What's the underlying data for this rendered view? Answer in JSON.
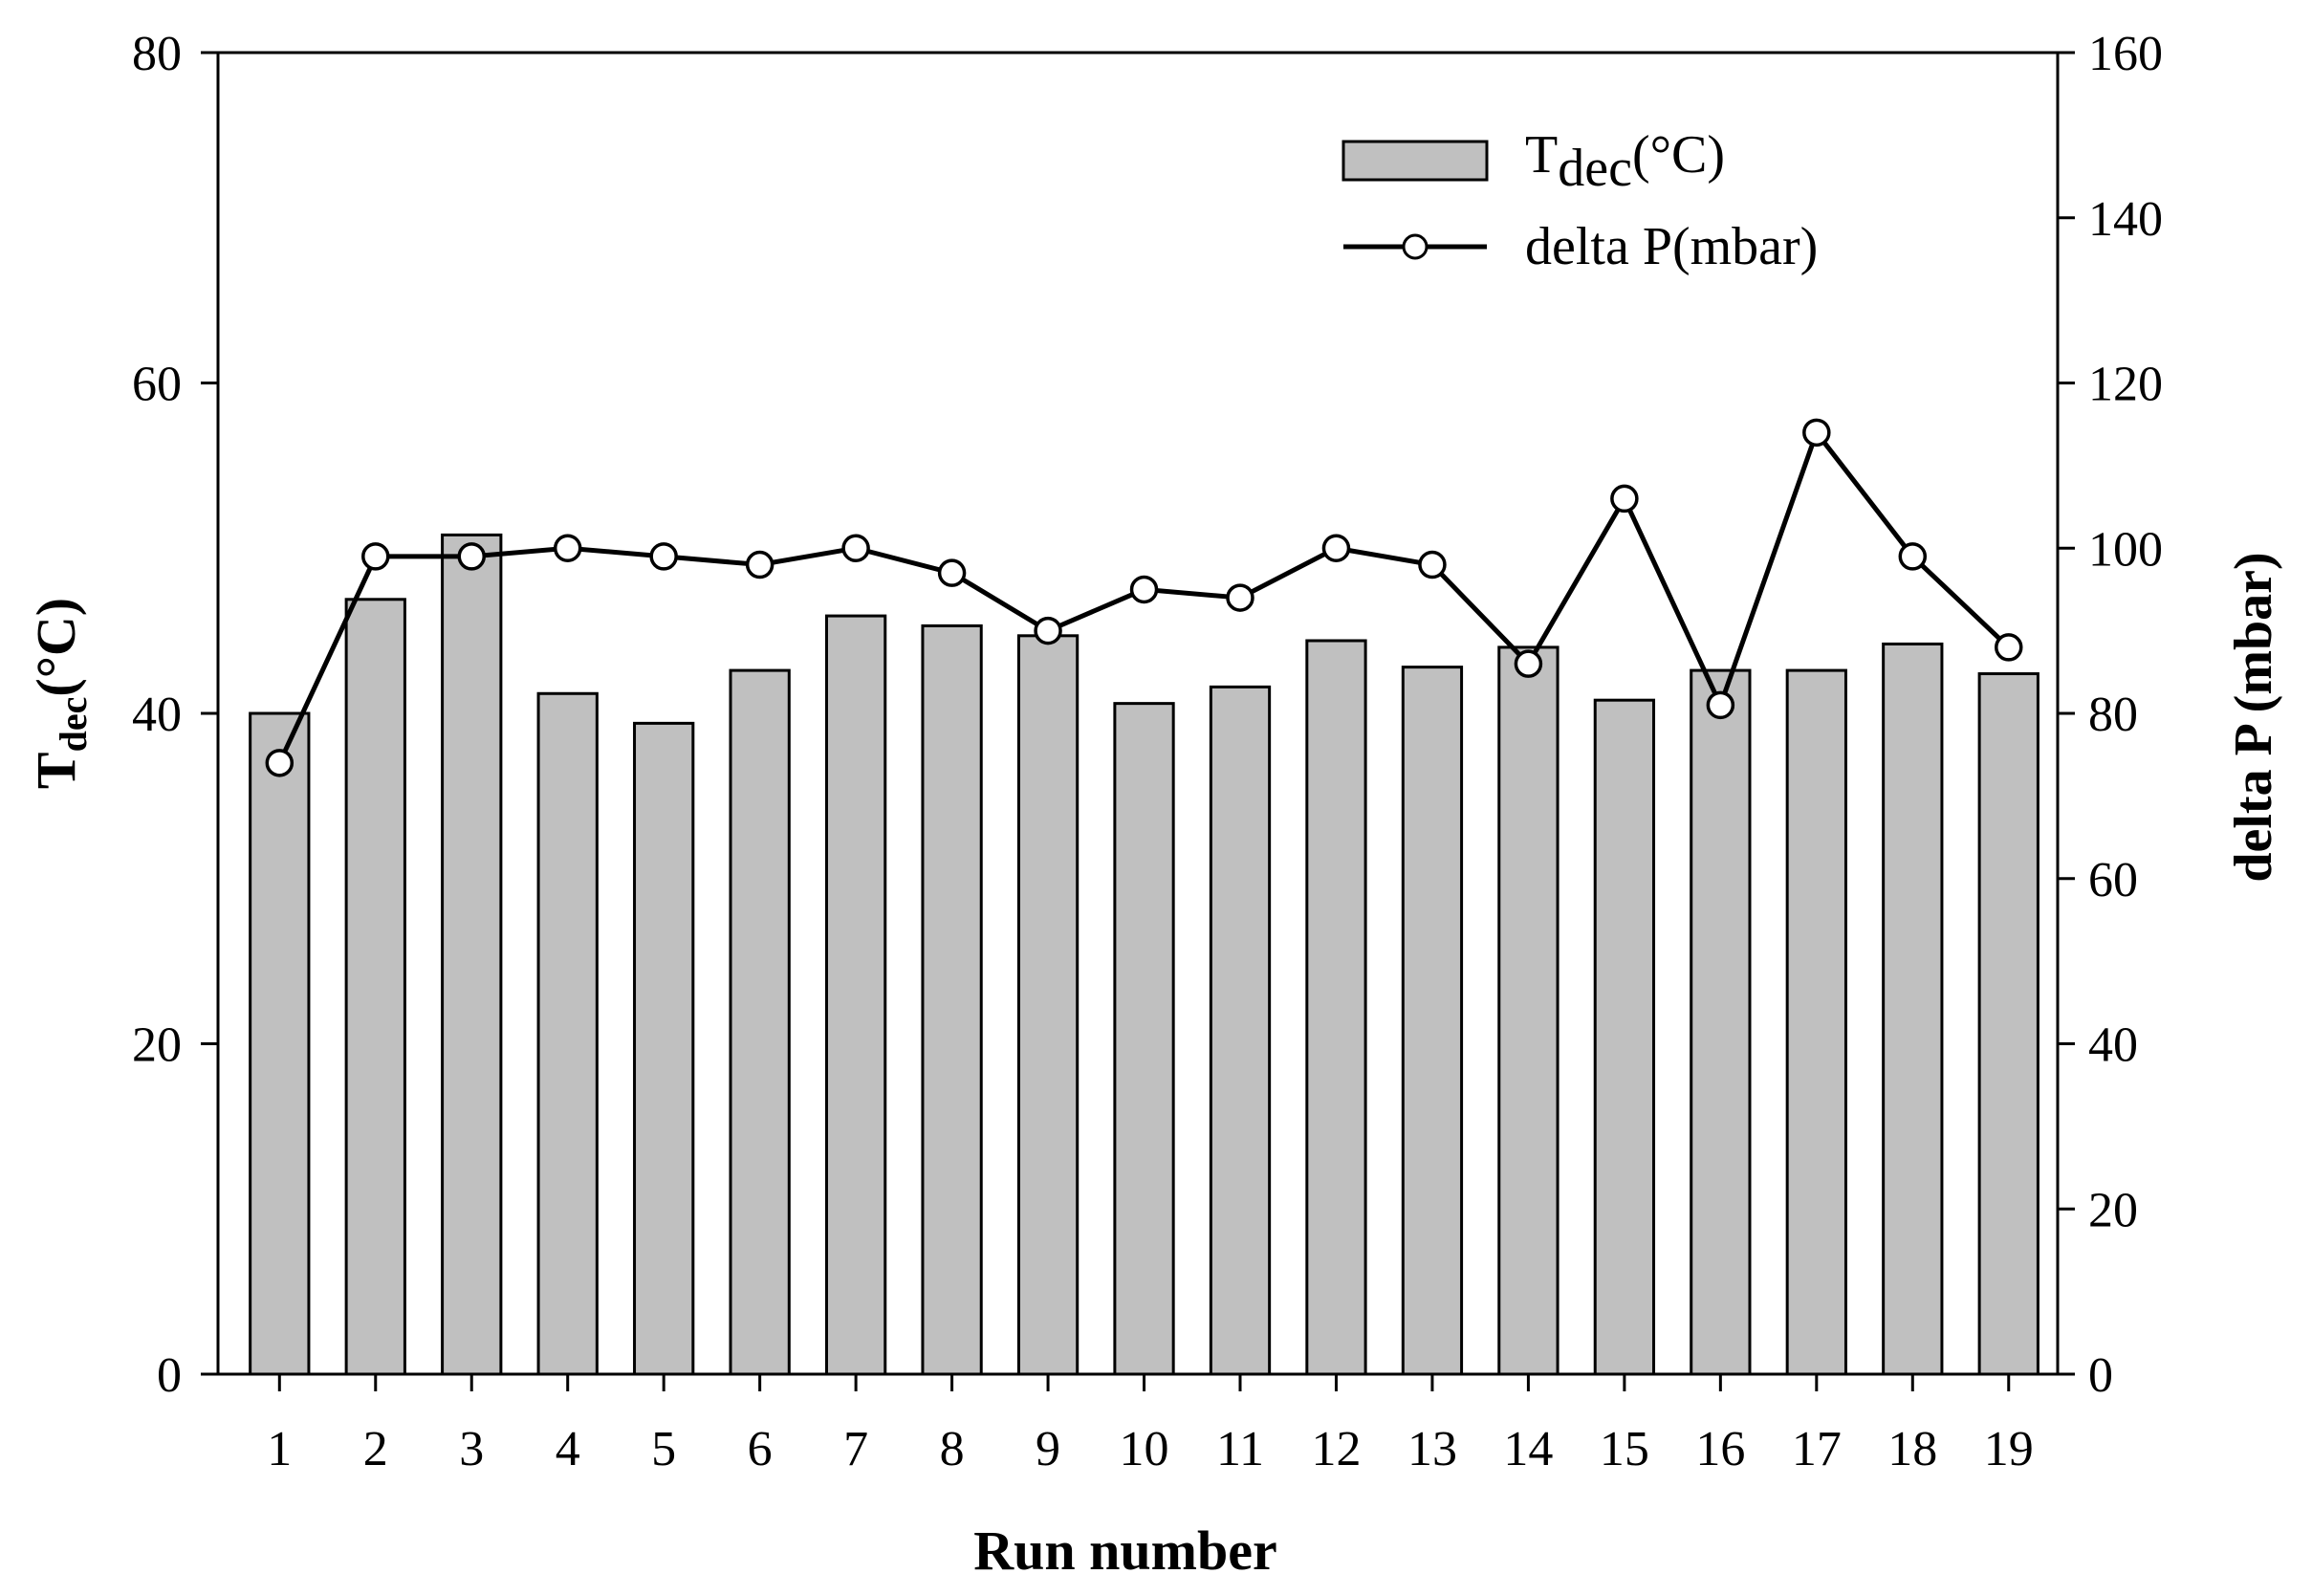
{
  "chart_data": {
    "type": "bar",
    "categories": [
      "1",
      "2",
      "3",
      "4",
      "5",
      "6",
      "7",
      "8",
      "9",
      "10",
      "11",
      "12",
      "13",
      "14",
      "15",
      "16",
      "17",
      "18",
      "19"
    ],
    "series": [
      {
        "name": "Tdec(°C)",
        "kind": "bar",
        "axis": "left",
        "values": [
          40.0,
          46.9,
          50.8,
          41.2,
          39.4,
          42.6,
          45.9,
          45.3,
          44.7,
          40.6,
          41.6,
          44.4,
          42.8,
          44.0,
          40.8,
          42.6,
          42.6,
          44.2,
          42.4
        ]
      },
      {
        "name": "delta P(mbar)",
        "kind": "line",
        "axis": "right",
        "values": [
          74.0,
          99.0,
          99.0,
          100.0,
          99.0,
          98.0,
          100.0,
          97.0,
          90.0,
          95.0,
          94.0,
          100.0,
          98.0,
          86.0,
          106.0,
          81.0,
          114.0,
          99.0,
          88.0
        ]
      }
    ],
    "xlabel": "Run number",
    "ylabel_left": {
      "main": "T",
      "sub": "dec",
      "unit": "(°C)"
    },
    "ylabel_right": "delta P (mbar)",
    "ylim_left": [
      0,
      80
    ],
    "ylim_right": [
      0,
      160
    ],
    "yticks_left": [
      "0",
      "20",
      "40",
      "60",
      "80"
    ],
    "yticks_right": [
      "0",
      "20",
      "40",
      "60",
      "80",
      "100",
      "120",
      "140",
      "160"
    ],
    "legend": {
      "position": "top-right",
      "bar_label": {
        "main": "T",
        "sub": "dec",
        "unit": "(°C)"
      },
      "line_label": "delta P(mbar)"
    },
    "grid": false,
    "colors": {
      "bar_fill": "#c0c0c0",
      "bar_stroke": "#000000",
      "line": "#000000",
      "marker_fill": "#ffffff",
      "left_axis_title": "#5a1a10"
    }
  }
}
